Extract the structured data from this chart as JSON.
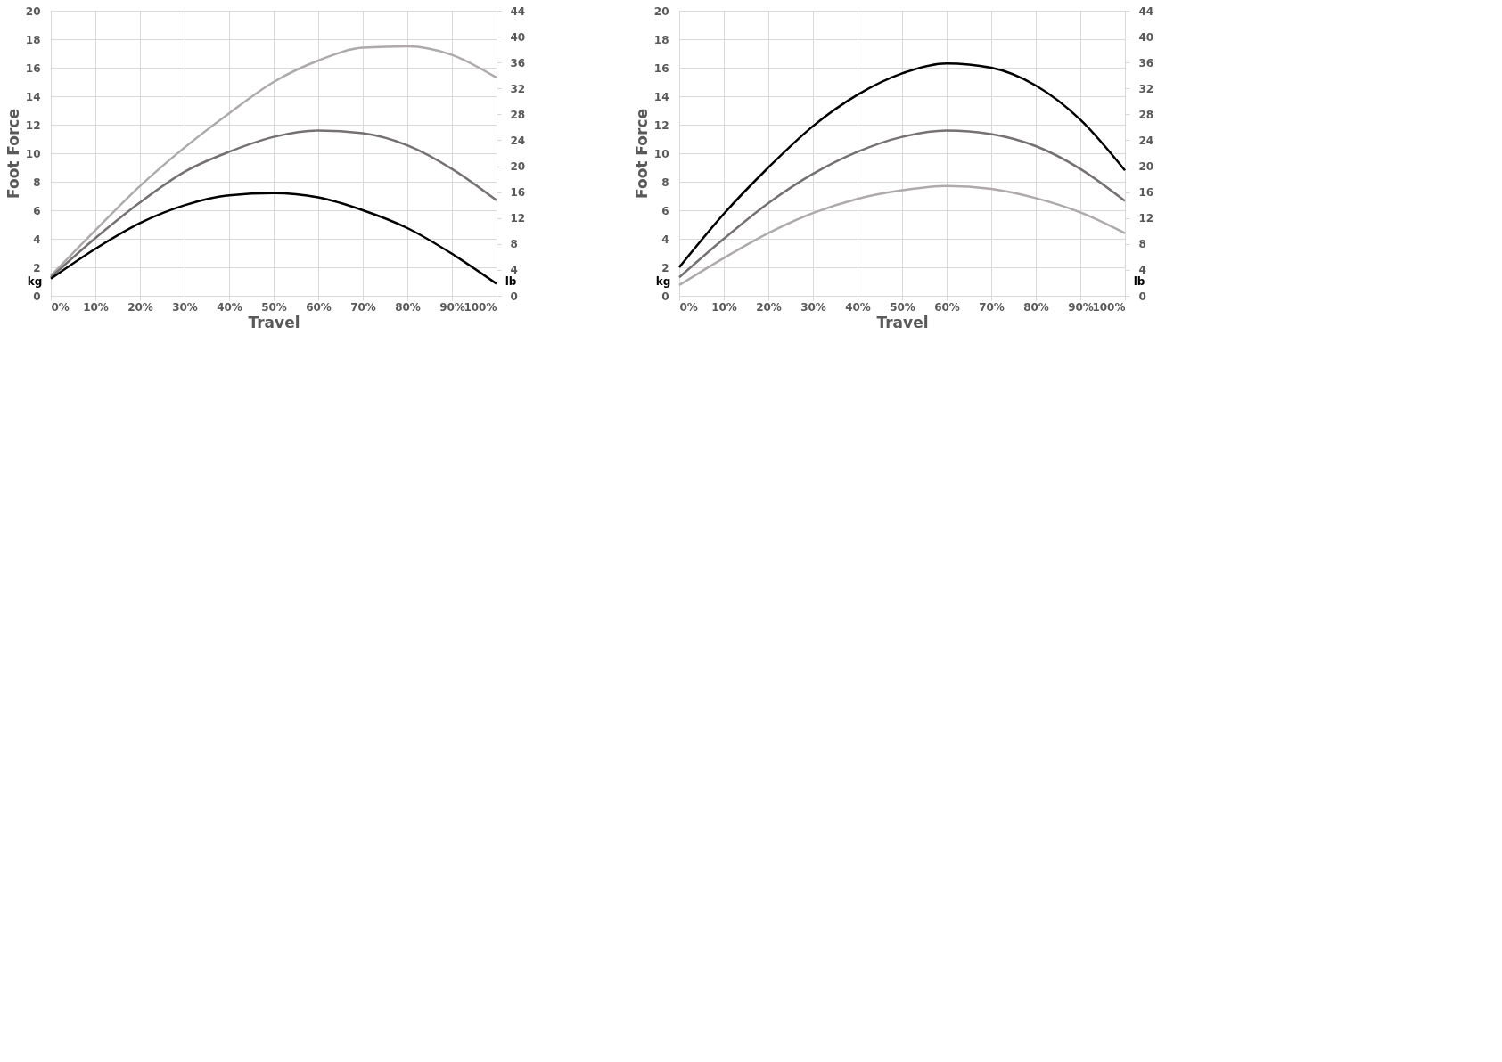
{
  "chart_data": [
    {
      "type": "line",
      "xlabel": "Travel",
      "ylabel": "Foot Force",
      "annotations": [
        "kg",
        "lb"
      ],
      "x": [
        0,
        10,
        20,
        30,
        40,
        50,
        60,
        70,
        80,
        90,
        100
      ],
      "series": [
        {
          "color": "#aeaaaa",
          "values": [
            1.4,
            4.6,
            7.7,
            10.4,
            12.8,
            15.0,
            16.5,
            17.4,
            17.5,
            16.9,
            15.3
          ]
        },
        {
          "color": "#767171",
          "values": [
            1.3,
            4.05,
            6.55,
            8.7,
            10.1,
            11.15,
            11.6,
            11.4,
            10.55,
            8.9,
            6.7
          ]
        },
        {
          "color": "#000000",
          "values": [
            1.2,
            3.3,
            5.1,
            6.35,
            7.05,
            7.2,
            6.9,
            6.0,
            4.75,
            2.95,
            0.85
          ]
        }
      ],
      "xlim": [
        0,
        100
      ],
      "xticks": [
        {
          "value": 0,
          "label": "0%"
        },
        {
          "value": 10,
          "label": "10%"
        },
        {
          "value": 20,
          "label": "20%"
        },
        {
          "value": 30,
          "label": "30%"
        },
        {
          "value": 40,
          "label": "40%"
        },
        {
          "value": 50,
          "label": "50%"
        },
        {
          "value": 60,
          "label": "60%"
        },
        {
          "value": 70,
          "label": "70%"
        },
        {
          "value": 80,
          "label": "80%"
        },
        {
          "value": 90,
          "label": "90%"
        },
        {
          "value": 100,
          "label": "100%"
        }
      ],
      "ylim": [
        0,
        20
      ],
      "yticks": [
        0,
        2,
        4,
        6,
        8,
        10,
        12,
        14,
        16,
        18,
        20
      ],
      "y2lim": [
        0,
        44
      ],
      "y2ticks": [
        0,
        4,
        8,
        12,
        16,
        20,
        24,
        28,
        32,
        36,
        40,
        44
      ],
      "grid": true,
      "legend": false
    },
    {
      "type": "line",
      "xlabel": "Travel",
      "ylabel": "Foot Force",
      "annotations": [
        "kg",
        "lb"
      ],
      "x": [
        0,
        10,
        20,
        30,
        40,
        50,
        60,
        70,
        80,
        90,
        100
      ],
      "series": [
        {
          "color": "#000000",
          "values": [
            2.0,
            5.75,
            9.0,
            11.9,
            14.1,
            15.6,
            16.3,
            16.0,
            14.75,
            12.35,
            8.8
          ]
        },
        {
          "color": "#767171",
          "values": [
            1.3,
            4.0,
            6.5,
            8.55,
            10.1,
            11.15,
            11.6,
            11.35,
            10.5,
            8.9,
            6.65
          ]
        },
        {
          "color": "#aeaaaa",
          "values": [
            0.75,
            2.65,
            4.4,
            5.8,
            6.8,
            7.4,
            7.7,
            7.5,
            6.85,
            5.85,
            4.4
          ]
        }
      ],
      "xlim": [
        0,
        100
      ],
      "xticks": [
        {
          "value": 0,
          "label": "0%"
        },
        {
          "value": 10,
          "label": "10%"
        },
        {
          "value": 20,
          "label": "20%"
        },
        {
          "value": 30,
          "label": "30%"
        },
        {
          "value": 40,
          "label": "40%"
        },
        {
          "value": 50,
          "label": "50%"
        },
        {
          "value": 60,
          "label": "60%"
        },
        {
          "value": 70,
          "label": "70%"
        },
        {
          "value": 80,
          "label": "80%"
        },
        {
          "value": 90,
          "label": "90%"
        },
        {
          "value": 100,
          "label": "100%"
        }
      ],
      "ylim": [
        0,
        20
      ],
      "yticks": [
        0,
        2,
        4,
        6,
        8,
        10,
        12,
        14,
        16,
        18,
        20
      ],
      "y2lim": [
        0,
        44
      ],
      "y2ticks": [
        0,
        4,
        8,
        12,
        16,
        20,
        24,
        28,
        32,
        36,
        40,
        44
      ],
      "grid": true,
      "legend": false
    }
  ]
}
